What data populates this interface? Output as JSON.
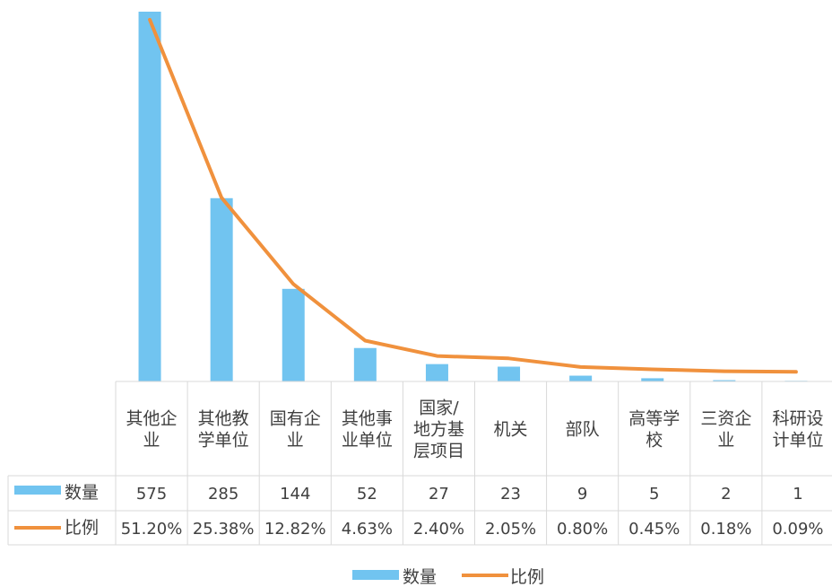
{
  "chart_data": {
    "type": "bar",
    "categories": [
      [
        "其他企",
        "业"
      ],
      [
        "其他教",
        "学单位"
      ],
      [
        "国有企",
        "业"
      ],
      [
        "其他事",
        "业单位"
      ],
      [
        "国家/",
        "地方基",
        "层项目"
      ],
      [
        "机关"
      ],
      [
        "部队"
      ],
      [
        "高等学",
        "校"
      ],
      [
        "三资企",
        "业"
      ],
      [
        "科研设",
        "计单位"
      ]
    ],
    "series": [
      {
        "name": "数量",
        "type": "bar",
        "color": "#71C4F0",
        "values": [
          575,
          285,
          144,
          52,
          27,
          23,
          9,
          5,
          2,
          1
        ],
        "labels": [
          "575",
          "285",
          "144",
          "52",
          "27",
          "23",
          "9",
          "5",
          "2",
          "1"
        ]
      },
      {
        "name": "比例",
        "type": "line",
        "color": "#F0913D",
        "values": [
          51.2,
          25.38,
          12.82,
          4.63,
          2.4,
          2.05,
          0.8,
          0.45,
          0.18,
          0.09
        ],
        "labels": [
          "51.20%",
          "25.38%",
          "12.82%",
          "4.63%",
          "2.40%",
          "2.05%",
          "0.80%",
          "0.45%",
          "0.18%",
          "0.09%"
        ]
      }
    ],
    "legend_position": "bottom",
    "data_table": true,
    "gridlines": false
  }
}
